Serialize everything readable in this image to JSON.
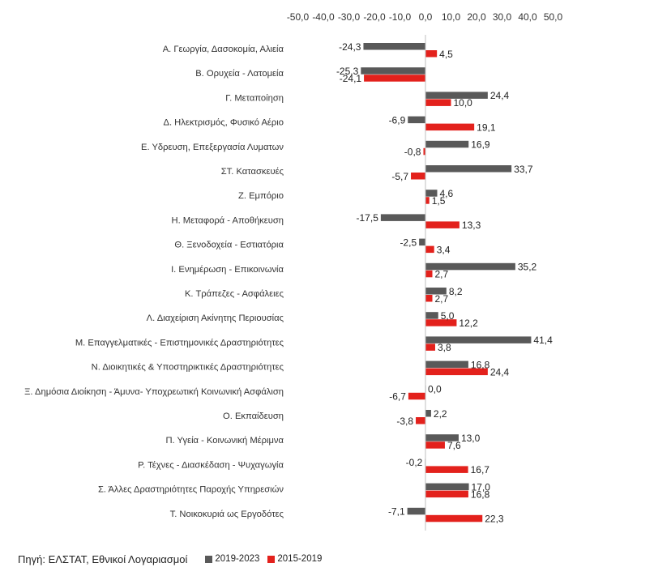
{
  "colors": {
    "series_2019_2023": "#595959",
    "series_2015_2019": "#e3211c",
    "axis": "#bfbfbf",
    "text": "#333333"
  },
  "source": "Πηγή: ΕΛΣΤΑΤ, Εθνικοί Λογαριασμοί",
  "chart_data": {
    "type": "bar",
    "orientation": "horizontal",
    "x_axis_position": "top",
    "xlim": [
      -50,
      50
    ],
    "x_ticks": [
      "-50,0",
      "-40,0",
      "-30,0",
      "-20,0",
      "-10,0",
      "0,0",
      "10,0",
      "20,0",
      "30,0",
      "40,0",
      "50,0"
    ],
    "grid": false,
    "legend_position": "bottom",
    "categories": [
      "Α. Γεωργία, Δασοκομία, Αλιεία",
      "Β. Ορυχεία - Λατομεία",
      "Γ. Μεταποίηση",
      "Δ. Ηλεκτρισμός, Φυσικό Αέριο",
      "Ε. Υδρευση, Επεξεργασία Λυματων",
      "ΣΤ. Κατασκευές",
      "Ζ. Εμπόριο",
      "Η. Μεταφορά - Αποθήκευση",
      "Θ. Ξενοδοχεία - Εστιατόρια",
      "Ι. Ενημέρωση - Επικοινωνία",
      "Κ. Τράπεζες - Ασφάλειες",
      "Λ. Διαχείριση Ακίνητης Περιουσίας",
      "Μ. Επαγγελματικές - Επιστημονικές Δραστηριότητες",
      "Ν. Διοικητικές & Υποστηρικτικές Δραστηριότητες",
      "Ξ. Δημόσια Διοίκηση - Άμυνα- Υποχρεωτική Κοινωνική Ασφάλιση",
      "Ο. Εκπαίδευση",
      "Π. Υγεία - Κοινωνική Μέριμνα",
      "Ρ. Τέχνες - Διασκέδαση - Ψυχαγωγία",
      "Σ. Άλλες Δραστηριότητες Παροχής Υπηρεσιών",
      "Τ. Νοικοκυριά ως Εργοδότες"
    ],
    "series": [
      {
        "name": "2019-2023",
        "values": [
          -24.3,
          -25.3,
          24.4,
          -6.9,
          16.9,
          33.7,
          4.6,
          -17.5,
          -2.5,
          35.2,
          8.2,
          5.0,
          41.4,
          16.8,
          0.0,
          2.2,
          13.0,
          -0.2,
          17.0,
          -7.1
        ],
        "labels": [
          "-24,3",
          "-25,3",
          "24,4",
          "-6,9",
          "16,9",
          "33,7",
          "4,6",
          "-17,5",
          "-2,5",
          "35,2",
          "8,2",
          "5,0",
          "41,4",
          "16,8",
          "0,0",
          "2,2",
          "13,0",
          "-0,2",
          "17,0",
          "-7,1"
        ]
      },
      {
        "name": "2015-2019",
        "values": [
          4.5,
          -24.1,
          10.0,
          19.1,
          -0.8,
          -5.7,
          1.5,
          13.3,
          3.4,
          2.7,
          2.7,
          12.2,
          3.8,
          24.4,
          -6.7,
          -3.8,
          7.6,
          16.7,
          16.8,
          22.3
        ],
        "labels": [
          "4,5",
          "-24,1",
          "10,0",
          "19,1",
          "-0,8",
          "-5,7",
          "1,5",
          "13,3",
          "3,4",
          "2,7",
          "2,7",
          "12,2",
          "3,8",
          "24,4",
          "-6,7",
          "-3,8",
          "7,6",
          "16,7",
          "16,8",
          "22,3"
        ]
      }
    ]
  }
}
